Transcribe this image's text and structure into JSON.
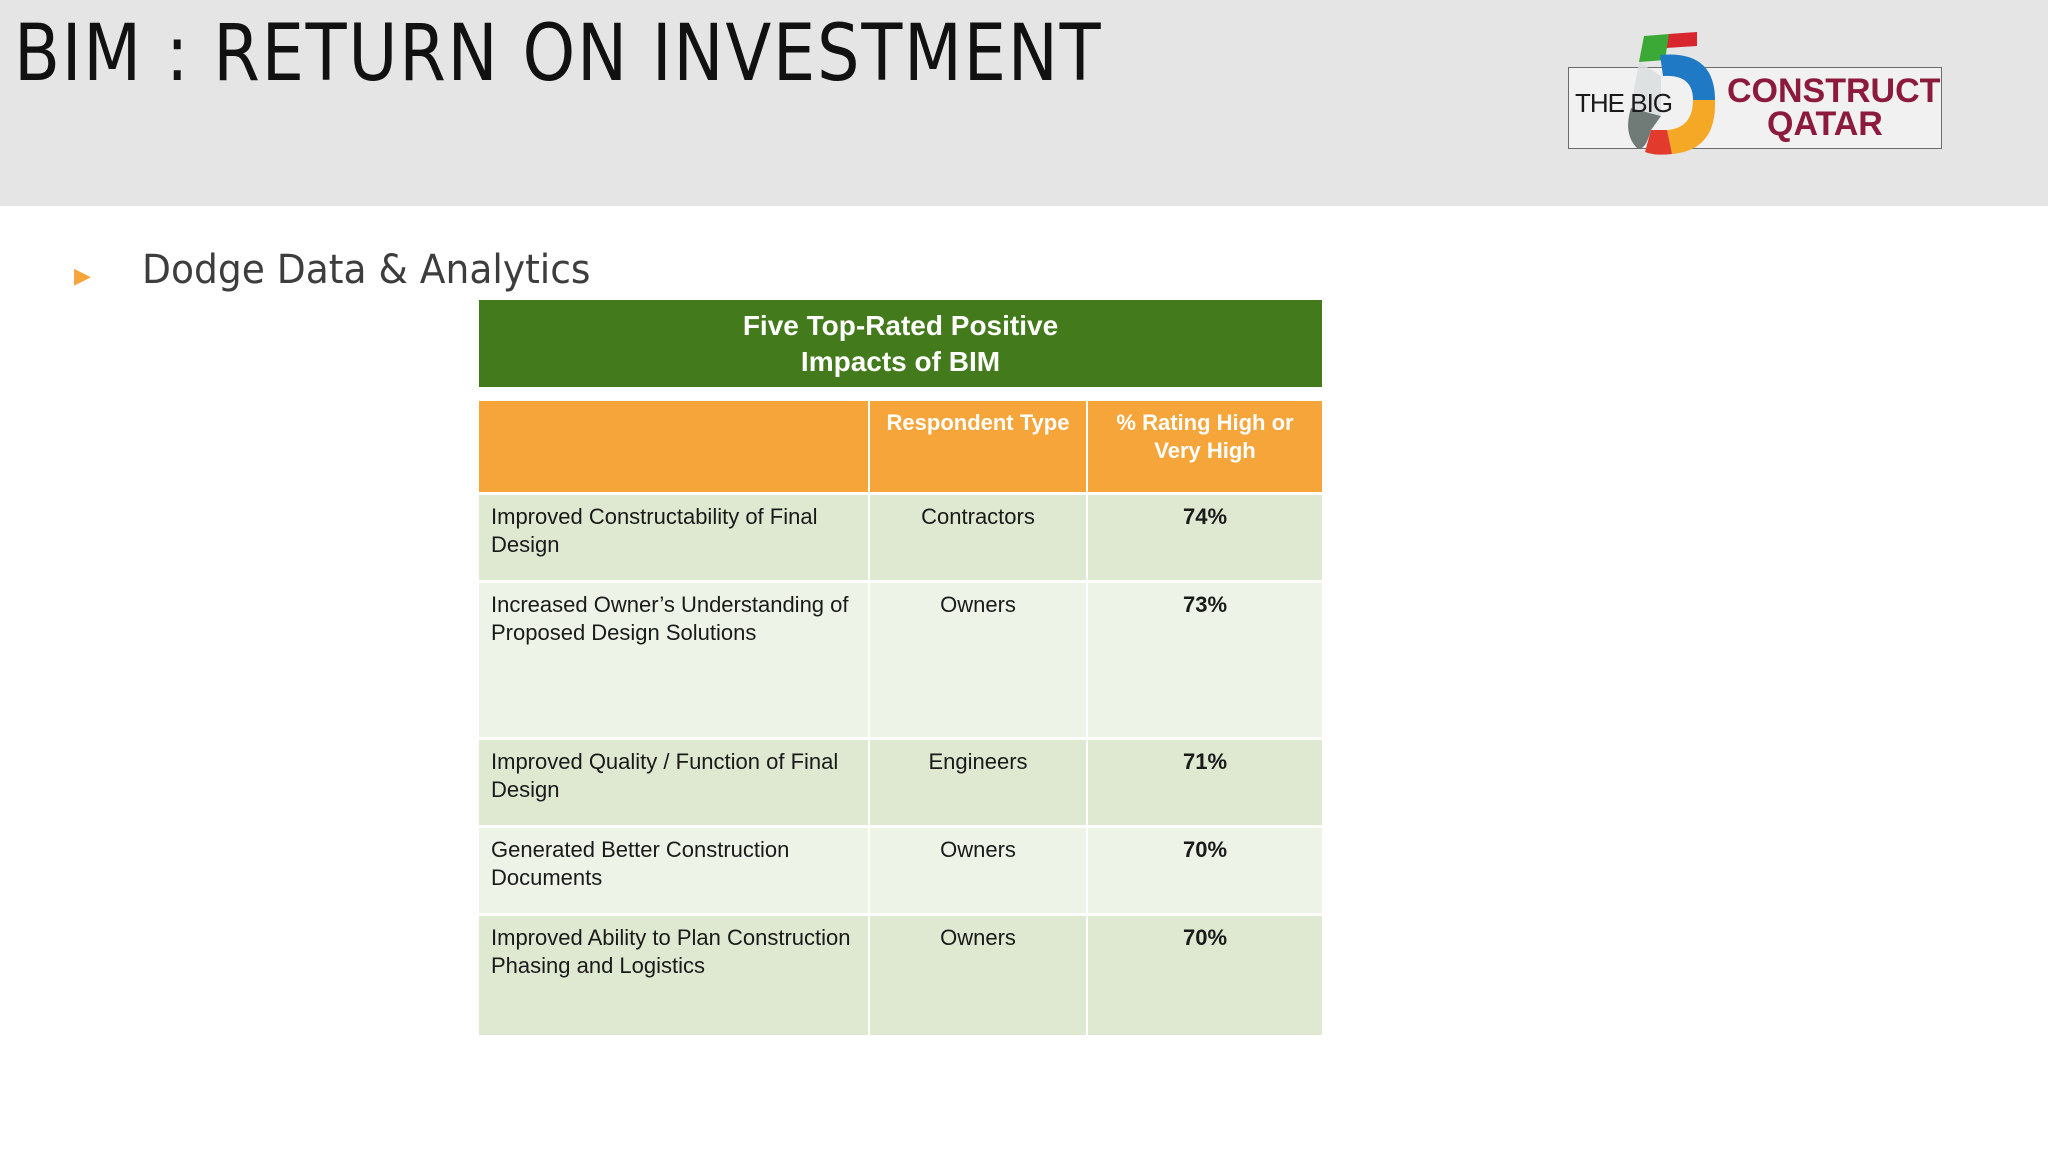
{
  "title": "BIM : RETURN ON INVESTMENT",
  "logo": {
    "line1": "THE BIG",
    "line2": "CONSTRUCT",
    "line3": "QATAR"
  },
  "bullet": {
    "icon": "triangle-right-icon",
    "text": "Dodge Data & Analytics"
  },
  "table": {
    "title_line1": "Five Top-Rated Positive",
    "title_line2": "Impacts of BIM",
    "headers": [
      "",
      "Respondent Type",
      "% Rating High or Very High"
    ],
    "rows": [
      {
        "impact": "Improved Constructability of Final Design",
        "type": "Contractors",
        "pct": "74%"
      },
      {
        "impact": "Increased Owner’s Understanding of Proposed Design Solutions",
        "type": "Owners",
        "pct": "73%"
      },
      {
        "impact": "Improved Quality / Function of Final Design",
        "type": "Engineers",
        "pct": "71%"
      },
      {
        "impact": "Generated Better Construction Documents",
        "type": "Owners",
        "pct": "70%"
      },
      {
        "impact": "Improved Ability to Plan Construction Phasing and Logistics",
        "type": "Owners",
        "pct": "70%"
      }
    ]
  },
  "colors": {
    "title_green": "#437a1b",
    "header_orange": "#f6a53b",
    "row_dark": "#dfe8d1",
    "row_light": "#eef3e8",
    "brand_maroon": "#8c1a3c"
  }
}
